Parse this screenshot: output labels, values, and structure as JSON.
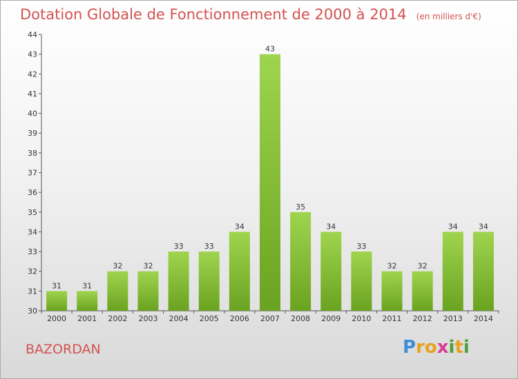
{
  "header": {
    "title": "Dotation Globale de Fonctionnement de 2000 à 2014",
    "subtitle": "(en milliers d'€)"
  },
  "footer": {
    "place": "BAZORDAN",
    "logo": [
      "P",
      "r",
      "o",
      "x",
      "i",
      "t",
      "i"
    ]
  },
  "colors": {
    "title": "#d2524f",
    "bar_top": "#9fd44e",
    "bar_bottom": "#6aa321",
    "logo": [
      "#3b8fd6",
      "#e8a21f",
      "#e8a21f",
      "#d83a8f",
      "#4aa03c",
      "#e8a21f",
      "#4aa03c"
    ]
  },
  "chart_data": {
    "type": "bar",
    "title": "Dotation Globale de Fonctionnement de 2000 à 2014",
    "subtitle": "(en milliers d'€)",
    "categories": [
      "2000",
      "2001",
      "2002",
      "2003",
      "2004",
      "2005",
      "2006",
      "2007",
      "2008",
      "2009",
      "2010",
      "2011",
      "2012",
      "2013",
      "2014"
    ],
    "values": [
      31,
      31,
      32,
      32,
      33,
      33,
      34,
      43,
      35,
      34,
      33,
      32,
      32,
      34,
      34
    ],
    "ylim": [
      30,
      44
    ],
    "yticks": [
      30,
      31,
      32,
      33,
      34,
      35,
      36,
      37,
      38,
      39,
      40,
      41,
      42,
      43,
      44
    ],
    "grid": false,
    "legend": "none"
  }
}
